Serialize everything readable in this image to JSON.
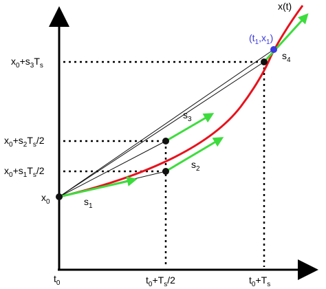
{
  "colors": {
    "curve": "#e8121c",
    "slope_arrow": "#3ddc3d",
    "chord": "#111111",
    "point": "#111111",
    "endpoint": "#3a3ae0",
    "axis": "#000000"
  },
  "labels": {
    "y_axis": "x(t)",
    "x0": {
      "base": "x",
      "sub": "0"
    },
    "t0": {
      "base": "t",
      "sub": "0"
    },
    "t_half": {
      "a": "t",
      "a_sub": "0",
      "b": "+T",
      "b_sub": "s",
      "c": "/2"
    },
    "t_full": {
      "a": "t",
      "a_sub": "0",
      "b": "+T",
      "b_sub": "s"
    },
    "y_s1": {
      "a": "x",
      "a_sub": "0",
      "b": "+s",
      "b_sub": "1",
      "c": "T",
      "c_sub": "s",
      "d": "/2"
    },
    "y_s2": {
      "a": "x",
      "a_sub": "0",
      "b": "+s",
      "b_sub": "2",
      "c": "T",
      "c_sub": "s",
      "d": "/2"
    },
    "y_s3": {
      "a": "x",
      "a_sub": "0",
      "b": "+s",
      "b_sub": "3",
      "c": "T",
      "c_sub": "s"
    },
    "s1": {
      "base": "s",
      "sub": "1"
    },
    "s2": {
      "base": "s",
      "sub": "2"
    },
    "s3": {
      "base": "s",
      "sub": "3"
    },
    "s4": {
      "base": "s",
      "sub": "4"
    },
    "endpoint": {
      "a": "(t",
      "a_sub": "1",
      "b": ",x",
      "b_sub": "1",
      "c": ")"
    }
  }
}
